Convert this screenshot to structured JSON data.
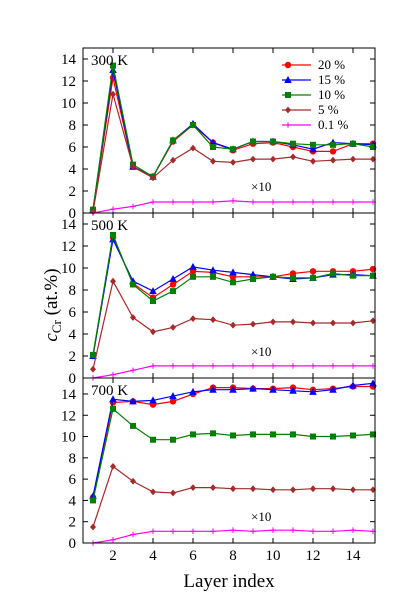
{
  "chart_data": {
    "type": "line",
    "xlabel": "Layer index",
    "ylabel": {
      "main": "c",
      "sub": "Cr",
      "unit": " (at.%)"
    },
    "xlim": [
      0.5,
      15.1
    ],
    "x_ticks": [
      2,
      4,
      6,
      8,
      10,
      12,
      14
    ],
    "shared_x": [
      1,
      2,
      3,
      4,
      5,
      6,
      7,
      8,
      9,
      10,
      11,
      12,
      13,
      14,
      15
    ],
    "legend": {
      "panel": 0,
      "placement": "top-right",
      "entries": [
        "20 %",
        "15 %",
        "10 %",
        "5 %",
        "0.1 %"
      ]
    },
    "series_styles": [
      {
        "name": "20 %",
        "color": "#ff0000",
        "marker": "circle"
      },
      {
        "name": "15 %",
        "color": "#0000ff",
        "marker": "triangle"
      },
      {
        "name": "10 %",
        "color": "#008000",
        "marker": "square"
      },
      {
        "name": "5 %",
        "color": "#a52a2a",
        "marker": "diamond"
      },
      {
        "name": "0.1 %",
        "color": "#ff00ff",
        "marker": "plus"
      }
    ],
    "panels": [
      {
        "label": "300 K",
        "annotation": "×10",
        "ylim": [
          0,
          15
        ],
        "y_ticks": [
          0,
          2,
          4,
          6,
          8,
          10,
          12,
          14
        ],
        "series": [
          {
            "name": "20 %",
            "values": [
              0.3,
              12.3,
              4.2,
              3.3,
              6.5,
              8.0,
              6.4,
              5.7,
              6.3,
              6.4,
              6.0,
              5.6,
              5.6,
              6.3,
              6.3
            ]
          },
          {
            "name": "15 %",
            "values": [
              0.3,
              13.0,
              4.2,
              3.3,
              6.6,
              8.1,
              6.4,
              5.8,
              6.5,
              6.5,
              6.2,
              5.8,
              6.4,
              6.3,
              6.2
            ]
          },
          {
            "name": "10 %",
            "values": [
              0.3,
              13.4,
              4.4,
              3.3,
              6.6,
              8.0,
              6.0,
              5.8,
              6.5,
              6.5,
              6.3,
              6.2,
              6.2,
              6.3,
              6.0
            ]
          },
          {
            "name": "5 %",
            "values": [
              0.1,
              10.8,
              4.2,
              3.2,
              4.8,
              5.9,
              4.7,
              4.6,
              4.9,
              4.9,
              5.1,
              4.7,
              4.8,
              4.9,
              4.9
            ]
          },
          {
            "name": "0.1 %",
            "values": [
              0.0,
              0.35,
              0.6,
              1.0,
              1.0,
              1.0,
              1.0,
              1.1,
              1.0,
              1.0,
              1.0,
              1.0,
              1.0,
              1.0,
              1.0
            ]
          }
        ]
      },
      {
        "label": "500 K",
        "annotation": "×10",
        "ylim": [
          0,
          15
        ],
        "y_ticks": [
          0,
          2,
          4,
          6,
          8,
          10,
          12,
          14
        ],
        "series": [
          {
            "name": "20 %",
            "values": [
              2.0,
              12.8,
              8.6,
              7.3,
              8.5,
              9.7,
              9.6,
              9.2,
              9.2,
              9.2,
              9.5,
              9.7,
              9.7,
              9.7,
              9.9
            ]
          },
          {
            "name": "15 %",
            "values": [
              2.0,
              12.6,
              8.8,
              7.9,
              9.0,
              10.1,
              9.8,
              9.6,
              9.4,
              9.2,
              9.0,
              9.1,
              9.4,
              9.4,
              9.3
            ]
          },
          {
            "name": "10 %",
            "values": [
              2.1,
              13.0,
              8.5,
              7.0,
              7.9,
              9.2,
              9.2,
              8.7,
              9.0,
              9.2,
              9.1,
              9.1,
              9.5,
              9.3,
              9.3
            ]
          },
          {
            "name": "5 %",
            "values": [
              0.8,
              8.8,
              5.5,
              4.2,
              4.6,
              5.4,
              5.3,
              4.8,
              4.9,
              5.1,
              5.1,
              5.0,
              5.0,
              5.0,
              5.2
            ]
          },
          {
            "name": "0.1 %",
            "values": [
              0.0,
              0.3,
              0.7,
              1.1,
              1.1,
              1.1,
              1.1,
              1.1,
              1.1,
              1.1,
              1.1,
              1.1,
              1.1,
              1.1,
              1.1
            ]
          }
        ]
      },
      {
        "label": "700 K",
        "annotation": "×10",
        "ylim": [
          0,
          15.5
        ],
        "y_ticks": [
          0,
          2,
          4,
          6,
          8,
          10,
          12,
          14
        ],
        "series": [
          {
            "name": "20 %",
            "values": [
              4.3,
              13.2,
              13.3,
              13.0,
              13.3,
              14.0,
              14.6,
              14.6,
              14.5,
              14.5,
              14.6,
              14.4,
              14.5,
              14.7,
              14.7
            ]
          },
          {
            "name": "15 %",
            "values": [
              4.4,
              13.5,
              13.3,
              13.4,
              13.8,
              14.2,
              14.4,
              14.4,
              14.5,
              14.4,
              14.3,
              14.2,
              14.4,
              14.8,
              15.0
            ]
          },
          {
            "name": "10 %",
            "values": [
              4.0,
              12.6,
              11.0,
              9.7,
              9.7,
              10.2,
              10.3,
              10.1,
              10.2,
              10.2,
              10.2,
              10.0,
              10.0,
              10.1,
              10.2
            ]
          },
          {
            "name": "5 %",
            "values": [
              1.5,
              7.2,
              5.8,
              4.8,
              4.7,
              5.2,
              5.2,
              5.1,
              5.1,
              5.0,
              5.0,
              5.1,
              5.1,
              5.0,
              5.0
            ]
          },
          {
            "name": "0.1 %",
            "values": [
              0.0,
              0.3,
              0.8,
              1.1,
              1.1,
              1.1,
              1.1,
              1.2,
              1.1,
              1.2,
              1.2,
              1.1,
              1.1,
              1.2,
              1.1
            ]
          }
        ]
      }
    ]
  }
}
